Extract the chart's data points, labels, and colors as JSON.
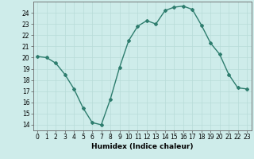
{
  "x": [
    0,
    1,
    2,
    3,
    4,
    5,
    6,
    7,
    8,
    9,
    10,
    11,
    12,
    13,
    14,
    15,
    16,
    17,
    18,
    19,
    20,
    21,
    22,
    23
  ],
  "y": [
    20.1,
    20.0,
    19.5,
    18.5,
    17.2,
    15.5,
    14.2,
    14.0,
    16.3,
    19.1,
    21.5,
    22.8,
    23.3,
    23.0,
    24.2,
    24.5,
    24.6,
    24.3,
    22.9,
    21.3,
    20.3,
    18.5,
    17.3,
    17.2
  ],
  "line_color": "#2e7d6e",
  "marker": "D",
  "marker_size": 2.0,
  "bg_color": "#ceecea",
  "grid_color": "#b8dbd8",
  "xlabel": "Humidex (Indice chaleur)",
  "ylim": [
    13.5,
    25.0
  ],
  "xlim": [
    -0.5,
    23.5
  ],
  "yticks": [
    14,
    15,
    16,
    17,
    18,
    19,
    20,
    21,
    22,
    23,
    24
  ],
  "xticks": [
    0,
    1,
    2,
    3,
    4,
    5,
    6,
    7,
    8,
    9,
    10,
    11,
    12,
    13,
    14,
    15,
    16,
    17,
    18,
    19,
    20,
    21,
    22,
    23
  ],
  "tick_fontsize": 5.5,
  "xlabel_fontsize": 6.5,
  "line_width": 1.0
}
